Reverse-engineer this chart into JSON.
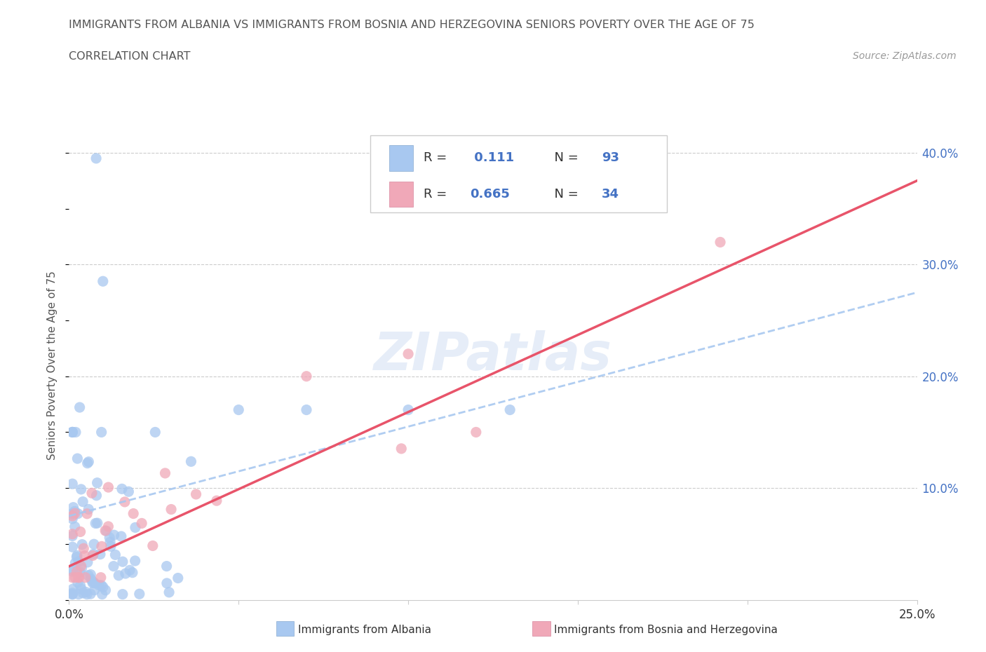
{
  "title_line1": "IMMIGRANTS FROM ALBANIA VS IMMIGRANTS FROM BOSNIA AND HERZEGOVINA SENIORS POVERTY OVER THE AGE OF 75",
  "title_line2": "CORRELATION CHART",
  "source": "Source: ZipAtlas.com",
  "ylabel": "Seniors Poverty Over the Age of 75",
  "xlim": [
    0.0,
    0.25
  ],
  "ylim": [
    0.0,
    0.42
  ],
  "color_albania": "#a8c8f0",
  "color_bosnia": "#f0a8b8",
  "line_color_albania": "#a8c8f0",
  "line_color_bosnia": "#e8546a",
  "R_albania": 0.111,
  "N_albania": 93,
  "R_bosnia": 0.665,
  "N_bosnia": 34,
  "watermark": "ZIPatlas",
  "legend_label_albania": "Immigrants from Albania",
  "legend_label_bosnia": "Immigrants from Bosnia and Herzegovina"
}
